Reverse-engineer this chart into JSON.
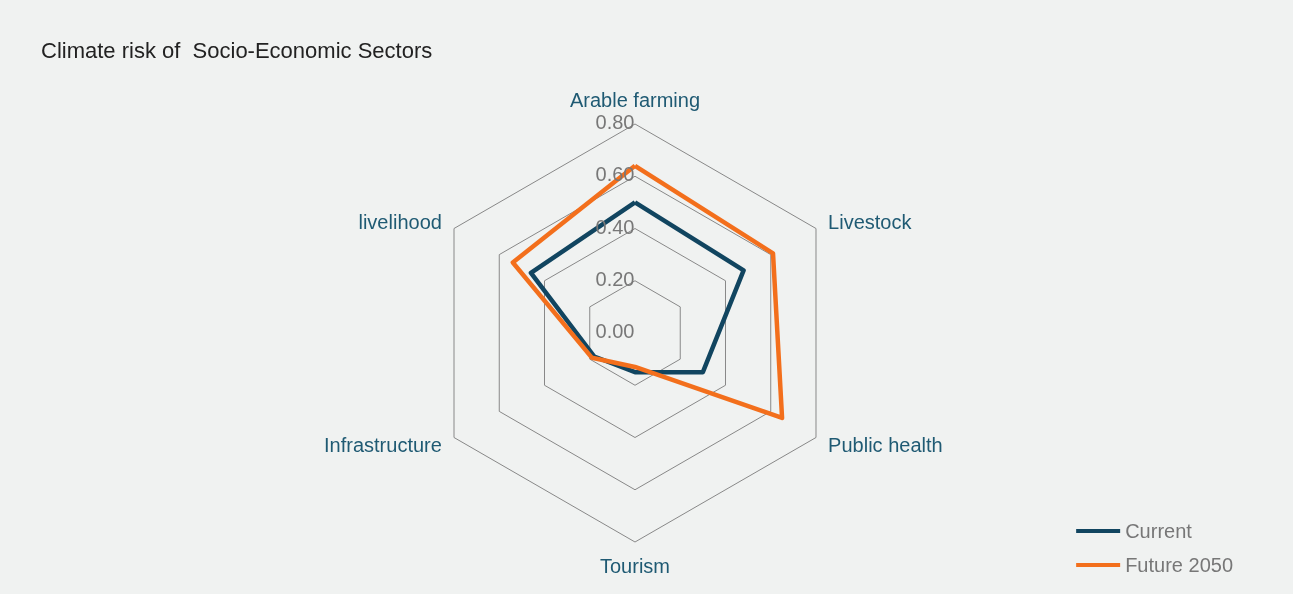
{
  "chart_data": {
    "type": "radar",
    "title": "Climate risk of  Socio-Economic Sectors",
    "categories": [
      "Arable farming",
      "Livestock",
      "Public health",
      "Tourism",
      "Infrastructure",
      "livelihood"
    ],
    "series": [
      {
        "name": "Current",
        "color": "#114560",
        "values": [
          0.5,
          0.48,
          0.3,
          0.15,
          0.18,
          0.46
        ]
      },
      {
        "name": "Future 2050",
        "color": "#f36f1c",
        "values": [
          0.64,
          0.61,
          0.65,
          0.13,
          0.19,
          0.54
        ]
      }
    ],
    "ylim": [
      0,
      0.8
    ],
    "yticks": [
      {
        "value": 0,
        "label": "0.00"
      },
      {
        "value": 0.2,
        "label": "0.20"
      },
      {
        "value": 0.4,
        "label": "0.40"
      },
      {
        "value": 0.6,
        "label": "0.60"
      },
      {
        "value": 0.8,
        "label": "0.80"
      }
    ],
    "legend": "bottom right",
    "marker": "none",
    "line_style": "solid"
  }
}
